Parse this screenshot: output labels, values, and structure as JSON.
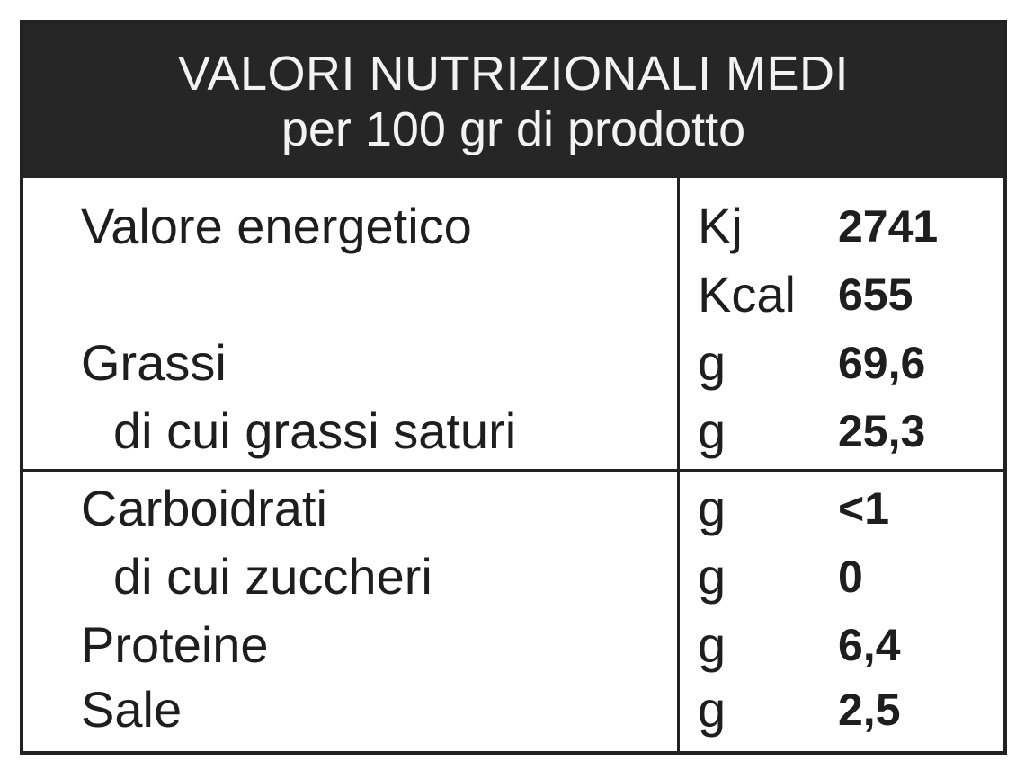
{
  "header": {
    "title": "VALORI NUTRIZIONALI MEDI",
    "subtitle": "per 100 gr di prodotto"
  },
  "rows": [
    {
      "name": "Valore energetico",
      "unit": "Kj",
      "value": "2741"
    },
    {
      "name": "",
      "unit": "Kcal",
      "value": "655"
    },
    {
      "name": "Grassi",
      "unit": "g",
      "value": "69,6"
    },
    {
      "name": "di cui grassi saturi",
      "unit": "g",
      "value": "25,3"
    },
    {
      "name": "Carboidrati",
      "unit": "g",
      "value": "<1"
    },
    {
      "name": "di cui zuccheri",
      "unit": "g",
      "value": "0"
    },
    {
      "name": "Proteine",
      "unit": "g",
      "value": "6,4"
    },
    {
      "name": "Sale",
      "unit": "g",
      "value": "2,5"
    }
  ]
}
